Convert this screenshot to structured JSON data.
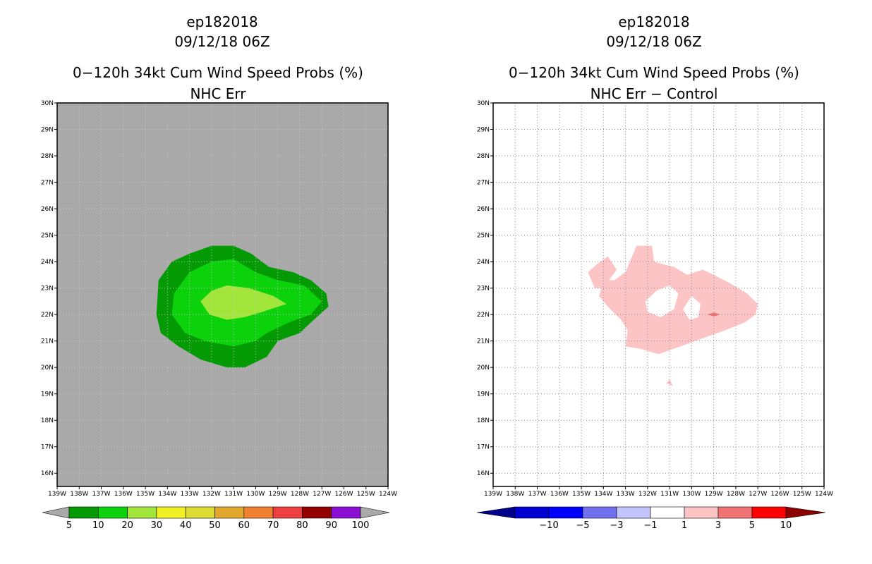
{
  "chart_data": [
    {
      "type": "contour-map",
      "id": "left",
      "title_lines": [
        "ep182018",
        "09/12/18 06Z",
        "0−120h 34kt Cum Wind Speed Probs (%)",
        "NHC Err"
      ],
      "lon_ticks": [
        "139W",
        "138W",
        "137W",
        "136W",
        "135W",
        "134W",
        "133W",
        "132W",
        "131W",
        "130W",
        "129W",
        "128W",
        "127W",
        "126W",
        "125W",
        "124W"
      ],
      "lat_ticks": [
        "16N",
        "17N",
        "18N",
        "19N",
        "20N",
        "21N",
        "22N",
        "23N",
        "24N",
        "25N",
        "26N",
        "27N",
        "28N",
        "29N",
        "30N"
      ],
      "xlim_lon_west": [
        139,
        124
      ],
      "ylim_lat": [
        15.5,
        30
      ],
      "background_color": "#a9a9a9",
      "contours": [
        {
          "level": "5-10",
          "color": "#049a04",
          "points": [
            [
              130.5,
              20.0
            ],
            [
              129.5,
              20.4
            ],
            [
              129.0,
              21.0
            ],
            [
              128.0,
              21.3
            ],
            [
              127.5,
              21.7
            ],
            [
              126.7,
              22.3
            ],
            [
              126.8,
              22.8
            ],
            [
              127.5,
              23.3
            ],
            [
              128.3,
              23.6
            ],
            [
              129.4,
              23.8
            ],
            [
              130.2,
              24.3
            ],
            [
              131.0,
              24.6
            ],
            [
              132.0,
              24.6
            ],
            [
              133.0,
              24.3
            ],
            [
              133.8,
              24.0
            ],
            [
              134.4,
              23.3
            ],
            [
              134.5,
              22.0
            ],
            [
              134.3,
              21.3
            ],
            [
              133.5,
              20.8
            ],
            [
              132.5,
              20.3
            ],
            [
              131.3,
              20.0
            ]
          ]
        },
        {
          "level": "10-20",
          "color": "#0cd20c",
          "points": [
            [
              131.0,
              20.8
            ],
            [
              130.0,
              21.0
            ],
            [
              129.5,
              21.3
            ],
            [
              128.5,
              21.7
            ],
            [
              127.5,
              22.0
            ],
            [
              127.0,
              22.5
            ],
            [
              127.8,
              23.1
            ],
            [
              129.0,
              23.3
            ],
            [
              130.0,
              23.6
            ],
            [
              131.0,
              24.1
            ],
            [
              132.0,
              24.0
            ],
            [
              133.0,
              23.6
            ],
            [
              133.7,
              22.8
            ],
            [
              133.8,
              22.0
            ],
            [
              133.2,
              21.3
            ],
            [
              132.3,
              21.0
            ]
          ]
        },
        {
          "level": "20-30",
          "color": "#a2e63c",
          "points": [
            [
              131.3,
              21.8
            ],
            [
              130.5,
              21.9
            ],
            [
              129.7,
              22.1
            ],
            [
              128.6,
              22.4
            ],
            [
              129.2,
              22.7
            ],
            [
              130.3,
              23.0
            ],
            [
              131.3,
              23.1
            ],
            [
              132.0,
              22.9
            ],
            [
              132.5,
              22.5
            ],
            [
              132.1,
              22.0
            ]
          ]
        }
      ],
      "colorbar": {
        "labels": [
          "5",
          "10",
          "20",
          "30",
          "40",
          "50",
          "60",
          "70",
          "80",
          "90",
          "100"
        ],
        "colors": [
          "#049a04",
          "#0cd20c",
          "#a2e63c",
          "#f0f022",
          "#dcdc32",
          "#e2a82c",
          "#ee8030",
          "#ee4040",
          "#920000",
          "#8c0ed2"
        ],
        "under_color": "#a9a9a9",
        "over_color": "#a9a9a9"
      }
    },
    {
      "type": "contour-map",
      "id": "right",
      "title_lines": [
        "ep182018",
        "09/12/18 06Z",
        "0−120h 34kt Cum Wind Speed Probs (%)",
        "NHC Err − Control"
      ],
      "lon_ticks": [
        "139W",
        "138W",
        "137W",
        "136W",
        "135W",
        "134W",
        "133W",
        "132W",
        "131W",
        "130W",
        "129W",
        "128W",
        "127W",
        "126W",
        "125W",
        "124W"
      ],
      "lat_ticks": [
        "16N",
        "17N",
        "18N",
        "19N",
        "20N",
        "21N",
        "22N",
        "23N",
        "24N",
        "25N",
        "26N",
        "27N",
        "28N",
        "29N",
        "30N"
      ],
      "xlim_lon_west": [
        139,
        124
      ],
      "ylim_lat": [
        15.5,
        30
      ],
      "background_color": "#ffffff",
      "grid": true,
      "contours": [
        {
          "level": "1-3",
          "color": "#fcc4c4",
          "points": [
            [
              133.5,
              23.3
            ],
            [
              133.0,
              23.6
            ],
            [
              132.7,
              24.2
            ],
            [
              132.5,
              24.6
            ],
            [
              131.8,
              24.6
            ],
            [
              131.7,
              24.0
            ],
            [
              131.3,
              23.9
            ],
            [
              130.8,
              23.8
            ],
            [
              130.2,
              23.5
            ],
            [
              129.5,
              23.7
            ],
            [
              129.0,
              23.5
            ],
            [
              128.3,
              23.2
            ],
            [
              127.5,
              22.8
            ],
            [
              127.0,
              22.4
            ],
            [
              127.1,
              22.0
            ],
            [
              127.6,
              21.7
            ],
            [
              128.5,
              21.4
            ],
            [
              129.5,
              21.1
            ],
            [
              130.5,
              20.8
            ],
            [
              131.5,
              20.5
            ],
            [
              132.3,
              20.7
            ],
            [
              133.0,
              20.8
            ],
            [
              132.9,
              21.4
            ],
            [
              133.2,
              21.8
            ],
            [
              133.8,
              22.3
            ],
            [
              134.2,
              22.7
            ],
            [
              134.0,
              23.3
            ],
            [
              133.5,
              23.3
            ]
          ]
        },
        {
          "level": "1-3",
          "color": "#fcc4c4",
          "points": [
            [
              134.7,
              23.6
            ],
            [
              134.3,
              23.9
            ],
            [
              133.8,
              24.2
            ],
            [
              133.4,
              23.7
            ],
            [
              134.0,
              23.0
            ],
            [
              134.4,
              23.0
            ]
          ]
        },
        {
          "level": "1-3",
          "color": "#fcc4c4",
          "points": [
            [
              131.0,
              19.55
            ],
            [
              130.85,
              19.3
            ],
            [
              131.15,
              19.4
            ]
          ]
        },
        {
          "level": "3-5",
          "color": "#f07272",
          "points": [
            [
              129.3,
              22.0
            ],
            [
              129.0,
              22.07
            ],
            [
              128.7,
              22.0
            ],
            [
              129.0,
              21.93
            ]
          ]
        }
      ],
      "holes": [
        {
          "points": [
            [
              132.1,
              22.5
            ],
            [
              131.6,
              22.9
            ],
            [
              131.0,
              23.1
            ],
            [
              130.6,
              22.8
            ],
            [
              130.8,
              22.2
            ],
            [
              131.4,
              21.9
            ],
            [
              132.0,
              22.1
            ]
          ]
        },
        {
          "points": [
            [
              130.0,
              22.7
            ],
            [
              129.6,
              22.4
            ],
            [
              129.7,
              21.9
            ],
            [
              130.1,
              21.8
            ],
            [
              130.4,
              22.2
            ]
          ]
        }
      ],
      "colorbar": {
        "labels": [
          "−10",
          "−5",
          "−3",
          "−1",
          "1",
          "3",
          "5",
          "10"
        ],
        "colors": [
          "#0000d2",
          "#0000ff",
          "#7070f0",
          "#c4c4fc",
          "#ffffff",
          "#fcc4c4",
          "#f07272",
          "#ff0000"
        ],
        "under_color": "#00008c",
        "over_color": "#8c0000"
      }
    }
  ]
}
